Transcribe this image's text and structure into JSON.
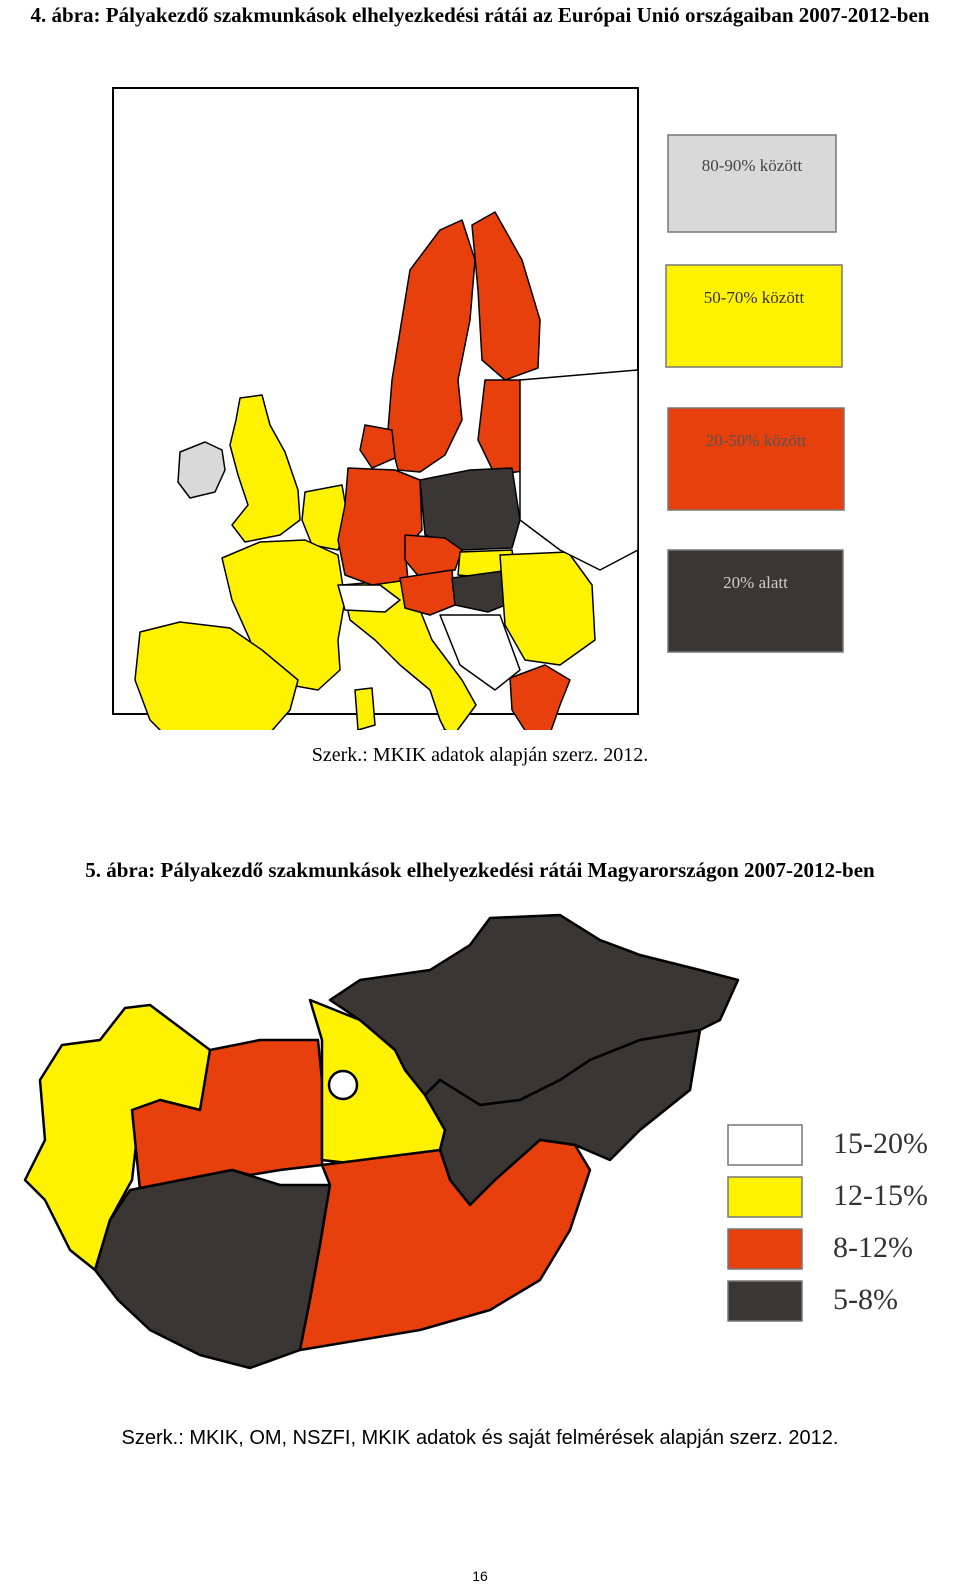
{
  "figures": [
    {
      "title": "4. ábra: Pályakezdő szakmunkások elhelyezkedési rátái az Európai Unió országaiban 2007-2012-ben",
      "legend": [
        {
          "label": "80-90% között",
          "color": "#d9d9d9"
        },
        {
          "label": "50-70% között",
          "color": "#fff200"
        },
        {
          "label": "20-50% között",
          "color": "#e8400c"
        },
        {
          "label": "20% alatt",
          "color": "#3a3634"
        }
      ],
      "source": "Szerk.: MKIK adatok alapján szerz. 2012."
    },
    {
      "title": "5. ábra: Pályakezdő szakmunkások elhelyezkedési rátái Magyarországon 2007-2012-ben",
      "legend": [
        {
          "label": "15-20%",
          "color": "#ffffff"
        },
        {
          "label": "12-15%",
          "color": "#fff200"
        },
        {
          "label": "8-12%",
          "color": "#e8400c"
        },
        {
          "label": "5-8%",
          "color": "#3a3634"
        }
      ],
      "source": "Szerk.: MKIK, OM, NSZFI, MKIK adatok és saját felmérések alapján szerz. 2012."
    }
  ],
  "page_number": "16"
}
